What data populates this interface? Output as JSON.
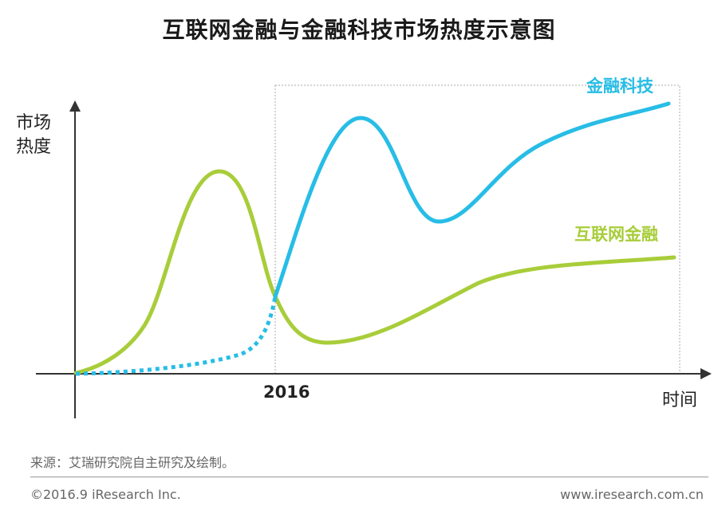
{
  "title": "互联网金融与金融科技市场热度示意图",
  "footer": {
    "source": "来源：艾瑞研究院自主研究及绘制。",
    "copyright": "©2016.9 iResearch Inc.",
    "website": "www.iresearch.com.cn"
  },
  "chart_data": {
    "type": "line",
    "ylabel_lines": [
      "市场",
      "热度"
    ],
    "xlabel": "时间",
    "marker_label": "2016",
    "grid": false,
    "x_range": [
      0,
      100
    ],
    "y_range": [
      0,
      100
    ],
    "series": [
      {
        "name": "互联网金融",
        "color": "#a8cd3a",
        "style": "solid",
        "points": [
          [
            0,
            0
          ],
          [
            12,
            20
          ],
          [
            17,
            55
          ],
          [
            24,
            82
          ],
          [
            30,
            55
          ],
          [
            33,
            30
          ],
          [
            36,
            15
          ],
          [
            43,
            13
          ],
          [
            60,
            32
          ],
          [
            70,
            40
          ],
          [
            100,
            48
          ]
        ]
      },
      {
        "name": "金融科技",
        "color": "#27bde6",
        "style": "dotted-then-solid",
        "dotted_until_x": 33,
        "points": [
          [
            0,
            0
          ],
          [
            18,
            3
          ],
          [
            28,
            8
          ],
          [
            33,
            30
          ],
          [
            39,
            70
          ],
          [
            47,
            100
          ],
          [
            58,
            65
          ],
          [
            68,
            72
          ],
          [
            77,
            92
          ],
          [
            100,
            115
          ]
        ]
      }
    ]
  }
}
